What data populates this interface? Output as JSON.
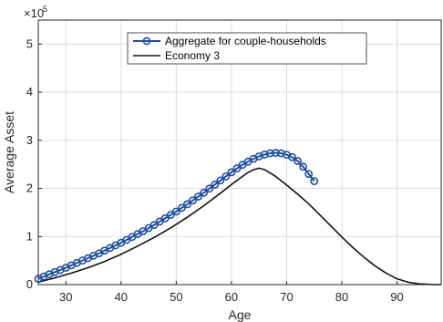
{
  "chart_data": {
    "type": "line",
    "xlabel": "Age",
    "ylabel": "Average Asset",
    "exponent_label": "×10",
    "exponent_power": "5",
    "xlim": [
      25,
      98
    ],
    "ylim": [
      0,
      550000
    ],
    "xticks": [
      "30",
      "40",
      "50",
      "60",
      "70",
      "80",
      "90"
    ],
    "yticks": [
      "0",
      "1",
      "2",
      "3",
      "4",
      "5"
    ],
    "grid": true,
    "legend_position": "top-center",
    "series": [
      {
        "name": "Aggregate for couple-households",
        "color": "#1f4e9c",
        "marker": "circle",
        "x": [
          25,
          26,
          27,
          28,
          29,
          30,
          31,
          32,
          33,
          34,
          35,
          36,
          37,
          38,
          39,
          40,
          41,
          42,
          43,
          44,
          45,
          46,
          47,
          48,
          49,
          50,
          51,
          52,
          53,
          54,
          55,
          56,
          57,
          58,
          59,
          60,
          61,
          62,
          63,
          64,
          65,
          66,
          67,
          68,
          69,
          70,
          71,
          72,
          73,
          74,
          75
        ],
        "y": [
          12000,
          17000,
          21500,
          26000,
          30500,
          35000,
          40000,
          45000,
          50000,
          55000,
          60000,
          65000,
          70500,
          76000,
          81500,
          87000,
          93000,
          99000,
          105000,
          111000,
          117500,
          124000,
          131000,
          138000,
          145000,
          152000,
          159500,
          167000,
          175000,
          183000,
          191000,
          199500,
          208000,
          216500,
          225000,
          233500,
          241500,
          249000,
          255500,
          261500,
          266500,
          270500,
          273000,
          274000,
          273000,
          270000,
          265000,
          257000,
          245000,
          230000,
          215000
        ]
      },
      {
        "name": "Economy 3",
        "color": "#111111",
        "marker": "none",
        "x": [
          25,
          28,
          31,
          34,
          37,
          40,
          43,
          46,
          49,
          52,
          55,
          58,
          60,
          62,
          63,
          64,
          65,
          66,
          68,
          70,
          72,
          74,
          76,
          78,
          80,
          82,
          84,
          86,
          88,
          90,
          92,
          94,
          96,
          98
        ],
        "y": [
          5000,
          14000,
          24000,
          35000,
          48000,
          63000,
          80000,
          98000,
          118000,
          140000,
          164000,
          190000,
          208000,
          225000,
          233000,
          239000,
          242000,
          239000,
          225000,
          207000,
          188000,
          168000,
          145000,
          122000,
          99000,
          77000,
          57000,
          39000,
          24000,
          12000,
          5000,
          1500,
          300,
          0
        ]
      }
    ]
  }
}
